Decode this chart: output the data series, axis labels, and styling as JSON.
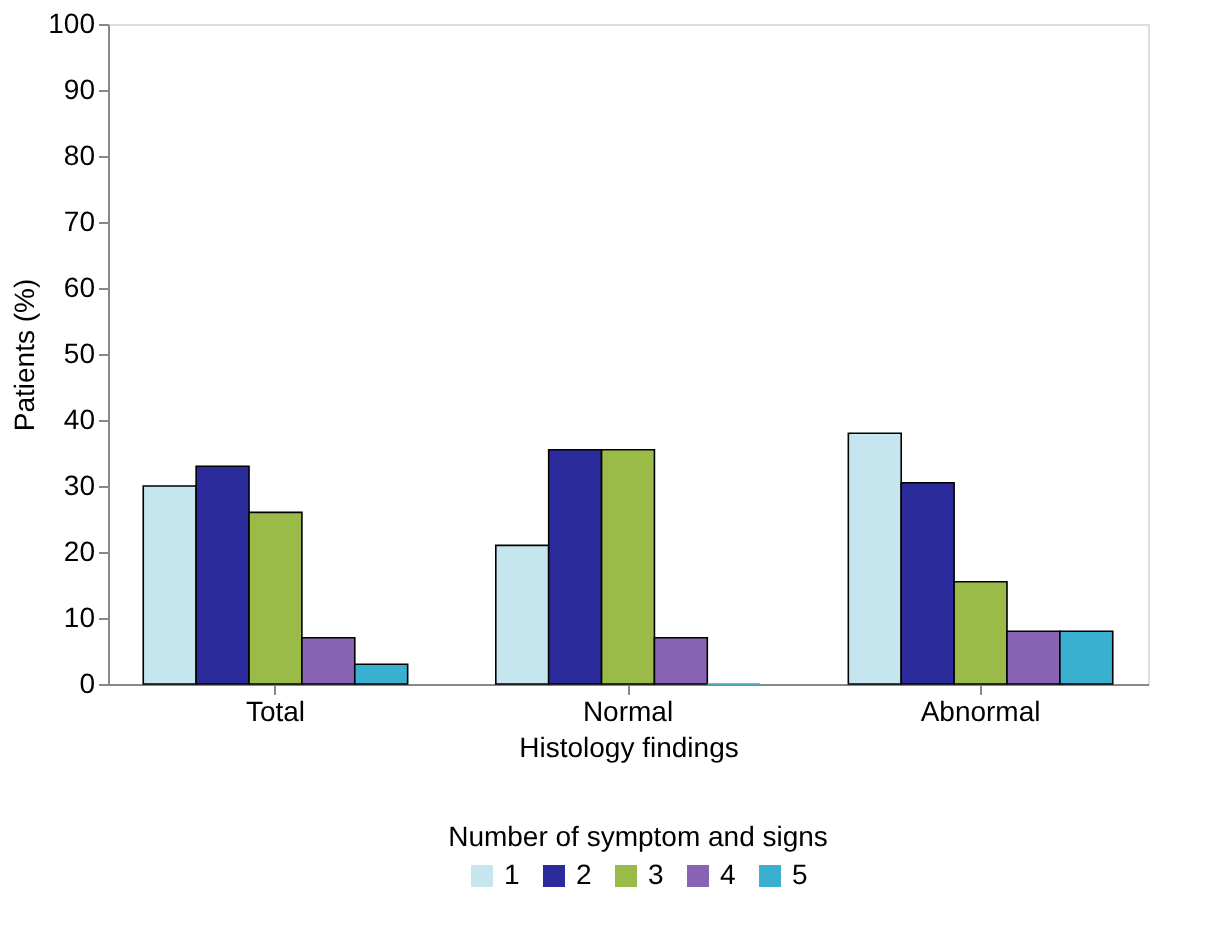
{
  "chart_data": {
    "type": "bar",
    "categories": [
      "Total",
      "Normal",
      "Abnormal"
    ],
    "xlabel": "Histology findings",
    "ylabel": "Patients (%)",
    "legend_title": "Number of symptom and signs",
    "series": [
      {
        "name": "1",
        "color": "#c5e6ee",
        "values": [
          30,
          21,
          38
        ]
      },
      {
        "name": "2",
        "color": "#2b2b9c",
        "values": [
          33,
          35.5,
          30.5
        ]
      },
      {
        "name": "3",
        "color": "#9abb48",
        "values": [
          26,
          35.5,
          15.5
        ]
      },
      {
        "name": "4",
        "color": "#8a64b4",
        "values": [
          7,
          7,
          8
        ]
      },
      {
        "name": "5",
        "color": "#3ab0d0",
        "values": [
          3,
          0,
          8
        ]
      }
    ],
    "ylim": [
      0,
      100
    ],
    "yticks": [
      0,
      10,
      20,
      30,
      40,
      50,
      60,
      70,
      80,
      90,
      100
    ],
    "grid": false,
    "legend": "bottom"
  }
}
